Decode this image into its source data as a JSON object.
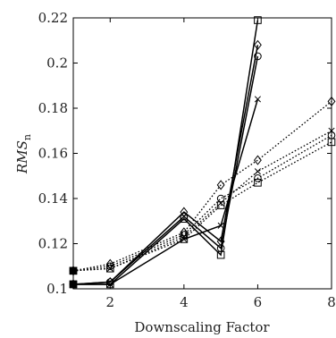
{
  "chart_data": {
    "type": "line",
    "xlabel": "Downscaling Factor",
    "ylabel": "RMS",
    "ylabel_subscript": "n",
    "xlim": [
      1,
      8
    ],
    "ylim": [
      0.1,
      0.22
    ],
    "x_ticks": [
      2,
      4,
      6,
      8
    ],
    "x_tick_labels": [
      "2",
      "4",
      "6",
      "8"
    ],
    "y_ticks": [
      0.1,
      0.12,
      0.14,
      0.16,
      0.18,
      0.2,
      0.22
    ],
    "y_tick_labels": [
      "0.1",
      "0.12",
      "0.14",
      "0.16",
      "0.18",
      "0.2",
      "0.22"
    ],
    "grid": false,
    "series": [
      {
        "style": "solid",
        "marker": "square",
        "x": [
          1,
          2,
          4,
          5,
          6
        ],
        "y": [
          0.102,
          0.102,
          0.131,
          0.115,
          0.219
        ]
      },
      {
        "style": "solid",
        "marker": "diamond",
        "x": [
          1,
          2,
          4,
          5,
          6
        ],
        "y": [
          0.102,
          0.103,
          0.134,
          0.121,
          0.208
        ]
      },
      {
        "style": "solid",
        "marker": "circle",
        "x": [
          1,
          2,
          4,
          5,
          6
        ],
        "y": [
          0.102,
          0.103,
          0.132,
          0.118,
          0.203
        ]
      },
      {
        "style": "solid",
        "marker": "x",
        "x": [
          1,
          2,
          4,
          5,
          6
        ],
        "y": [
          0.102,
          0.102,
          0.122,
          0.128,
          0.184
        ]
      },
      {
        "style": "dotted",
        "marker": "diamond",
        "x": [
          1,
          2,
          4,
          5,
          6,
          8
        ],
        "y": [
          0.108,
          0.111,
          0.125,
          0.146,
          0.157,
          0.183
        ]
      },
      {
        "style": "dotted",
        "marker": "x",
        "x": [
          1,
          2,
          4,
          5,
          6,
          8
        ],
        "y": [
          0.108,
          0.109,
          0.123,
          0.138,
          0.152,
          0.17
        ]
      },
      {
        "style": "dotted",
        "marker": "circle",
        "x": [
          1,
          2,
          4,
          5,
          6,
          8
        ],
        "y": [
          0.108,
          0.11,
          0.124,
          0.14,
          0.149,
          0.168
        ]
      },
      {
        "style": "dotted",
        "marker": "square",
        "x": [
          1,
          2,
          4,
          5,
          6,
          8
        ],
        "y": [
          0.108,
          0.109,
          0.122,
          0.137,
          0.147,
          0.165
        ]
      }
    ]
  }
}
